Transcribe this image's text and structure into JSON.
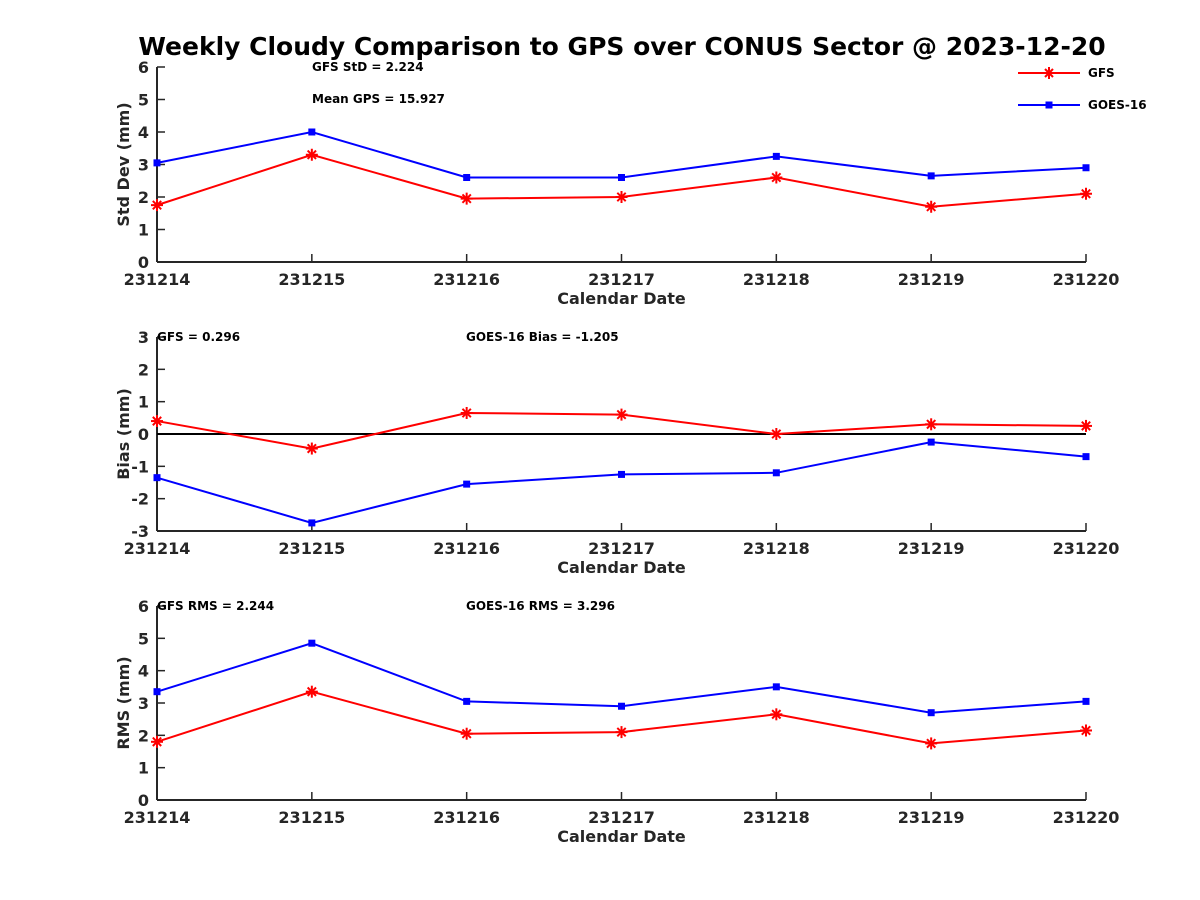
{
  "chart_data": {
    "title": "Weekly Cloudy Comparison to GPS over CONUS Sector @ 2023-12-20",
    "legend": {
      "placement": "top-right",
      "entries": [
        "GFS",
        "GOES-16"
      ]
    },
    "colors": {
      "GFS": "#ff0000",
      "GOES-16": "#0000ff",
      "axis": "#262626"
    },
    "markers": {
      "GFS": "asterisk",
      "GOES-16": "square"
    },
    "panels": [
      {
        "type": "line",
        "categories": [
          "231214",
          "231215",
          "231216",
          "231217",
          "231218",
          "231219",
          "231220"
        ],
        "xlabel": "Calendar Date",
        "ylabel": "Std Dev (mm)",
        "ylim": [
          0,
          6
        ],
        "yticks": [
          "0",
          "1",
          "2",
          "3",
          "4",
          "5",
          "6"
        ],
        "grid": false,
        "zero_line": false,
        "annotations": [
          "GFS StD = 2.224",
          "Mean GPS = 15.927"
        ],
        "series": [
          {
            "name": "GFS",
            "values": [
              1.75,
              3.3,
              1.95,
              2.0,
              2.6,
              1.7,
              2.1
            ]
          },
          {
            "name": "GOES-16",
            "values": [
              3.05,
              4.0,
              2.6,
              2.6,
              3.25,
              2.65,
              2.9
            ]
          }
        ]
      },
      {
        "type": "line",
        "categories": [
          "231214",
          "231215",
          "231216",
          "231217",
          "231218",
          "231219",
          "231220"
        ],
        "xlabel": "Calendar Date",
        "ylabel": "Bias (mm)",
        "ylim": [
          -3,
          3
        ],
        "yticks": [
          "-3",
          "-2",
          "-1",
          "0",
          "1",
          "2",
          "3"
        ],
        "grid": false,
        "zero_line": true,
        "annotations": [
          "GFS = 0.296",
          "GOES-16 Bias  = -1.205"
        ],
        "series": [
          {
            "name": "GFS",
            "values": [
              0.4,
              -0.45,
              0.65,
              0.6,
              0.0,
              0.3,
              0.25
            ]
          },
          {
            "name": "GOES-16",
            "values": [
              -1.35,
              -2.75,
              -1.55,
              -1.25,
              -1.2,
              -0.25,
              -0.7
            ]
          }
        ]
      },
      {
        "type": "line",
        "categories": [
          "231214",
          "231215",
          "231216",
          "231217",
          "231218",
          "231219",
          "231220"
        ],
        "xlabel": "Calendar Date",
        "ylabel": "RMS (mm)",
        "ylim": [
          0,
          6
        ],
        "yticks": [
          "0",
          "1",
          "2",
          "3",
          "4",
          "5",
          "6"
        ],
        "grid": false,
        "zero_line": false,
        "annotations": [
          "GFS RMS = 2.244",
          "GOES-16 RMS = 3.296"
        ],
        "series": [
          {
            "name": "GFS",
            "values": [
              1.8,
              3.35,
              2.05,
              2.1,
              2.65,
              1.75,
              2.15
            ]
          },
          {
            "name": "GOES-16",
            "values": [
              3.35,
              4.85,
              3.05,
              2.9,
              3.5,
              2.7,
              3.05
            ]
          }
        ]
      }
    ]
  }
}
